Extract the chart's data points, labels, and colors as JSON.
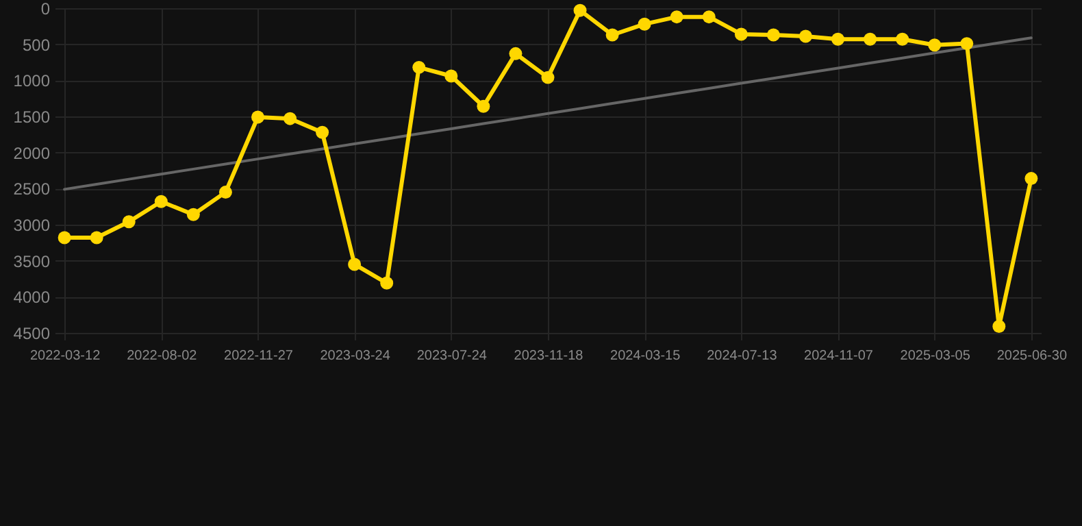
{
  "chart_data": {
    "type": "line",
    "categories": [
      "2022-03-12",
      null,
      null,
      "2022-08-02",
      null,
      null,
      "2022-11-27",
      null,
      null,
      "2023-03-24",
      null,
      null,
      "2023-07-24",
      null,
      null,
      "2023-11-18",
      null,
      null,
      "2024-03-15",
      null,
      null,
      "2024-07-13",
      null,
      null,
      "2024-11-07",
      null,
      null,
      "2025-03-05",
      null,
      null,
      "2025-06-30"
    ],
    "series": [
      {
        "color": "#ffd700",
        "marker": "circle",
        "values": [
          3180,
          3180,
          2960,
          2680,
          2860,
          2550,
          1510,
          1530,
          1720,
          3550,
          3810,
          820,
          940,
          1360,
          630,
          960,
          30,
          370,
          220,
          120,
          120,
          360,
          370,
          390,
          430,
          430,
          430,
          510,
          490,
          4410,
          2360
        ]
      },
      {
        "color": "#666666",
        "marker": "none",
        "values": [
          2510,
          2440,
          2370,
          2300,
          2230,
          2160,
          2090,
          2020,
          1950,
          1880,
          1810,
          1740,
          1670,
          1600,
          1530,
          1460,
          1390,
          1320,
          1250,
          1180,
          1110,
          1040,
          970,
          900,
          830,
          760,
          690,
          620,
          550,
          480,
          410
        ]
      }
    ],
    "ylim": [
      4500,
      0
    ],
    "yticks": [
      0,
      500,
      1000,
      1500,
      2000,
      2500,
      3000,
      3500,
      4000,
      4500
    ],
    "grid": true
  }
}
